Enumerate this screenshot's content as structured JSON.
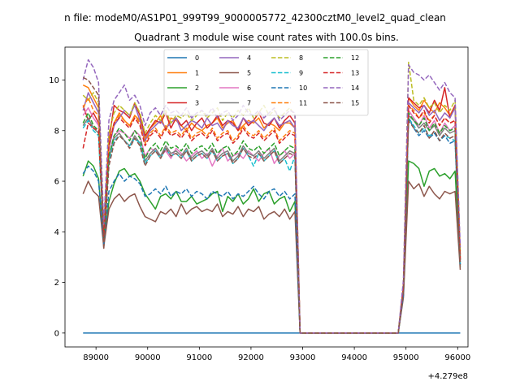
{
  "chart_data": {
    "type": "line",
    "suptitle": "n file: modeM0/AS1P01_999T99_9000005772_42300cztM0_level2_quad_clean",
    "title": "Quadrant 3 module wise count rates with 100.0s bins.",
    "xlabel": "",
    "ylabel": "",
    "x_offset_label": "+4.279e8",
    "xlim": [
      88400,
      96200
    ],
    "ylim": [
      -0.55,
      11.3
    ],
    "xticks": [
      89000,
      90000,
      91000,
      92000,
      93000,
      94000,
      95000,
      96000
    ],
    "xtick_labels": [
      "89000",
      "90000",
      "91000",
      "92000",
      "93000",
      "94000",
      "95000",
      "96000"
    ],
    "yticks": [
      0,
      2,
      4,
      6,
      8,
      10
    ],
    "ytick_labels": [
      "0",
      "2",
      "4",
      "6",
      "8",
      "10"
    ],
    "legend_location": "upper center",
    "legend_columns": 4,
    "x_start": 88750,
    "x_step": 100,
    "series": [
      {
        "name": "0",
        "color": "#1f77b4",
        "dashed": false,
        "values": [
          0,
          0,
          0,
          0,
          0,
          0,
          0,
          0,
          0,
          0,
          0,
          0,
          0,
          0,
          0,
          0,
          0,
          0,
          0,
          0,
          0,
          0,
          0,
          0,
          0,
          0,
          0,
          0,
          0,
          0,
          0,
          0,
          0,
          0,
          0,
          0,
          0,
          0,
          0,
          0,
          0,
          0,
          0,
          0,
          0,
          0,
          0,
          0,
          0,
          0,
          0,
          0,
          0,
          0,
          0,
          0,
          0,
          0,
          0,
          0,
          0,
          0,
          0,
          0,
          0,
          0,
          0,
          0,
          0,
          0,
          0,
          0,
          0,
          0
        ]
      },
      {
        "name": "1",
        "color": "#ff7f0e",
        "dashed": false,
        "values": [
          9.8,
          9.7,
          9.3,
          8.9,
          3.9,
          7.4,
          8.3,
          8.7,
          8.4,
          8.2,
          8.6,
          8.4,
          7.7,
          8.1,
          8.3,
          8.6,
          8.0,
          8.5,
          8.4,
          8.2,
          8.0,
          8.3,
          8.1,
          8.0,
          8.2,
          8.3,
          8.5,
          8.1,
          8.3,
          8.4,
          8.0,
          8.2,
          8.4,
          8.3,
          8.5,
          8.1,
          8.3,
          8.2,
          8.0,
          8.3,
          8.3,
          8.1,
          0,
          0,
          0,
          0,
          0,
          0,
          0,
          0,
          0,
          0,
          0,
          0,
          0,
          0,
          0,
          0,
          0,
          0,
          0,
          0,
          1.8,
          9.3,
          9.0,
          8.8,
          9.2,
          8.9,
          8.7,
          9.1,
          8.9,
          8.6,
          9.0,
          3.0
        ]
      },
      {
        "name": "2",
        "color": "#2ca02c",
        "dashed": false,
        "values": [
          6.2,
          6.8,
          6.6,
          6.1,
          3.5,
          5.2,
          5.9,
          6.4,
          6.5,
          6.2,
          6.3,
          6.0,
          5.5,
          5.2,
          4.9,
          5.4,
          5.5,
          5.3,
          5.6,
          5.2,
          5.2,
          5.4,
          5.1,
          5.2,
          5.3,
          5.5,
          5.6,
          4.8,
          5.4,
          5.2,
          5.5,
          5.1,
          5.3,
          5.7,
          5.2,
          5.5,
          5.6,
          5.1,
          5.3,
          5.4,
          4.8,
          5.2,
          0,
          0,
          0,
          0,
          0,
          0,
          0,
          0,
          0,
          0,
          0,
          0,
          0,
          0,
          0,
          0,
          0,
          0,
          0,
          0,
          1.5,
          6.8,
          6.7,
          6.5,
          5.8,
          6.4,
          6.5,
          6.2,
          6.3,
          6.1,
          6.4,
          2.6
        ]
      },
      {
        "name": "3",
        "color": "#d62728",
        "dashed": false,
        "values": [
          9.0,
          8.4,
          8.7,
          8.3,
          4.2,
          7.6,
          9.0,
          8.8,
          8.7,
          8.5,
          9.1,
          8.6,
          7.8,
          8.1,
          8.4,
          8.3,
          8.7,
          8.1,
          8.5,
          8.2,
          8.4,
          8.0,
          8.3,
          8.5,
          8.1,
          8.3,
          8.6,
          8.2,
          8.4,
          8.3,
          8.0,
          8.5,
          8.2,
          8.4,
          8.7,
          8.3,
          8.2,
          8.5,
          8.1,
          8.4,
          8.6,
          8.3,
          0,
          0,
          0,
          0,
          0,
          0,
          0,
          0,
          0,
          0,
          0,
          0,
          0,
          0,
          0,
          0,
          0,
          0,
          0,
          0,
          1.9,
          9.3,
          9.1,
          8.9,
          9.0,
          8.7,
          9.2,
          8.8,
          9.7,
          8.5,
          9.0,
          3.1
        ]
      },
      {
        "name": "4",
        "color": "#9467bd",
        "dashed": false,
        "values": [
          8.8,
          9.5,
          9.1,
          8.7,
          3.8,
          7.3,
          8.2,
          8.5,
          8.8,
          8.6,
          9.0,
          8.4,
          7.6,
          8.0,
          8.2,
          8.4,
          8.1,
          8.3,
          8.5,
          8.0,
          8.2,
          8.4,
          8.3,
          8.1,
          8.5,
          8.2,
          8.3,
          8.0,
          8.4,
          8.2,
          8.1,
          8.5,
          8.3,
          8.4,
          8.2,
          8.0,
          8.3,
          8.5,
          8.2,
          8.3,
          8.4,
          8.1,
          0,
          0,
          0,
          0,
          0,
          0,
          0,
          0,
          0,
          0,
          0,
          0,
          0,
          0,
          0,
          0,
          0,
          0,
          0,
          0,
          1.8,
          9.1,
          8.9,
          8.7,
          9.0,
          8.6,
          8.8,
          8.4,
          8.7,
          8.5,
          8.9,
          2.9
        ]
      },
      {
        "name": "5",
        "color": "#8c564b",
        "dashed": false,
        "values": [
          5.5,
          6.0,
          5.6,
          5.4,
          3.4,
          4.9,
          5.3,
          5.5,
          5.2,
          5.4,
          5.5,
          5.0,
          4.6,
          4.5,
          4.4,
          4.8,
          4.7,
          4.9,
          4.6,
          5.1,
          4.7,
          4.9,
          5.0,
          4.8,
          4.9,
          4.8,
          5.1,
          4.6,
          4.8,
          4.7,
          5.0,
          4.6,
          4.9,
          4.8,
          5.0,
          4.5,
          4.7,
          4.8,
          4.6,
          4.9,
          4.5,
          4.8,
          0,
          0,
          0,
          0,
          0,
          0,
          0,
          0,
          0,
          0,
          0,
          0,
          0,
          0,
          0,
          0,
          0,
          0,
          0,
          0,
          1.4,
          6.0,
          5.7,
          5.9,
          5.4,
          5.8,
          5.5,
          5.3,
          5.6,
          5.5,
          5.6,
          2.5
        ]
      },
      {
        "name": "6",
        "color": "#e377c2",
        "dashed": false,
        "values": [
          8.6,
          8.9,
          8.5,
          8.2,
          3.7,
          7.0,
          7.8,
          8.0,
          7.9,
          7.7,
          8.0,
          7.8,
          7.0,
          7.3,
          7.2,
          7.0,
          7.2,
          6.9,
          7.3,
          7.1,
          6.8,
          7.0,
          7.2,
          6.9,
          7.1,
          6.6,
          7.0,
          7.3,
          6.8,
          7.0,
          7.1,
          6.9,
          7.2,
          7.0,
          6.8,
          7.1,
          7.3,
          6.7,
          7.0,
          7.2,
          6.9,
          7.1,
          0,
          0,
          0,
          0,
          0,
          0,
          0,
          0,
          0,
          0,
          0,
          0,
          0,
          0,
          0,
          0,
          0,
          0,
          0,
          0,
          1.7,
          8.8,
          8.5,
          8.2,
          8.6,
          8.1,
          8.4,
          7.9,
          8.3,
          8.0,
          8.2,
          2.8
        ]
      },
      {
        "name": "7",
        "color": "#7f7f7f",
        "dashed": false,
        "values": [
          8.2,
          8.5,
          8.1,
          7.9,
          3.6,
          6.9,
          7.7,
          7.9,
          7.6,
          7.4,
          7.8,
          7.5,
          6.8,
          7.1,
          7.3,
          7.0,
          7.4,
          7.1,
          7.2,
          7.0,
          7.3,
          6.9,
          7.1,
          7.2,
          7.0,
          7.3,
          6.9,
          7.1,
          7.2,
          6.8,
          7.0,
          7.4,
          7.1,
          7.0,
          7.2,
          6.9,
          7.1,
          7.3,
          6.8,
          7.0,
          7.2,
          7.1,
          0,
          0,
          0,
          0,
          0,
          0,
          0,
          0,
          0,
          0,
          0,
          0,
          0,
          0,
          0,
          0,
          0,
          0,
          0,
          0,
          1.7,
          8.6,
          8.4,
          8.1,
          8.3,
          8.0,
          8.2,
          7.8,
          8.1,
          7.9,
          8.0,
          2.8
        ]
      },
      {
        "name": "8",
        "color": "#bcbd22",
        "dashed": true,
        "values": [
          9.4,
          9.2,
          9.5,
          9.1,
          4.1,
          7.9,
          8.7,
          9.0,
          8.8,
          8.6,
          9.1,
          8.7,
          7.9,
          8.3,
          8.6,
          8.4,
          8.8,
          8.3,
          8.6,
          8.5,
          8.7,
          8.4,
          8.6,
          8.8,
          8.5,
          8.7,
          8.9,
          8.4,
          8.7,
          8.5,
          8.8,
          8.6,
          8.9,
          8.5,
          8.7,
          9.0,
          8.6,
          8.8,
          8.5,
          8.7,
          8.9,
          8.6,
          0,
          0,
          0,
          0,
          0,
          0,
          0,
          0,
          0,
          0,
          0,
          0,
          0,
          0,
          0,
          0,
          0,
          0,
          0,
          0,
          2.0,
          10.7,
          9.2,
          9.0,
          9.3,
          8.9,
          9.1,
          8.7,
          9.0,
          8.8,
          9.2,
          3.2
        ]
      },
      {
        "name": "9",
        "color": "#17becf",
        "dashed": true,
        "values": [
          8.1,
          8.4,
          8.0,
          7.8,
          3.6,
          6.8,
          7.6,
          7.8,
          7.6,
          7.4,
          7.7,
          7.5,
          6.7,
          7.0,
          7.2,
          6.9,
          7.3,
          7.0,
          7.1,
          6.9,
          7.2,
          6.8,
          7.0,
          7.1,
          6.9,
          7.2,
          6.8,
          7.0,
          7.1,
          6.7,
          6.9,
          7.3,
          7.0,
          6.6,
          7.1,
          6.8,
          7.0,
          7.2,
          6.7,
          6.9,
          6.4,
          7.0,
          0,
          0,
          0,
          0,
          0,
          0,
          0,
          0,
          0,
          0,
          0,
          0,
          0,
          0,
          0,
          0,
          0,
          0,
          0,
          0,
          1.6,
          8.5,
          8.2,
          7.9,
          8.1,
          7.8,
          7.9,
          7.6,
          7.8,
          7.7,
          7.6,
          2.7
        ]
      },
      {
        "name": "10",
        "color": "#1f77b4",
        "dashed": true,
        "values": [
          6.3,
          6.6,
          6.4,
          6.0,
          3.5,
          5.6,
          6.0,
          6.3,
          6.0,
          6.2,
          6.1,
          5.9,
          5.4,
          5.5,
          5.7,
          5.5,
          5.8,
          5.4,
          5.6,
          5.5,
          5.7,
          5.4,
          5.6,
          5.5,
          5.3,
          5.6,
          5.5,
          5.4,
          5.6,
          5.3,
          5.5,
          5.4,
          5.6,
          5.8,
          5.5,
          5.3,
          5.6,
          5.7,
          5.4,
          5.6,
          5.3,
          5.5,
          0,
          0,
          0,
          0,
          0,
          0,
          0,
          0,
          0,
          0,
          0,
          0,
          0,
          0,
          0,
          0,
          0,
          0,
          0,
          0,
          1.5,
          8.5,
          8.1,
          7.8,
          8.0,
          7.7,
          7.9,
          7.6,
          7.8,
          7.5,
          7.6,
          2.7
        ]
      },
      {
        "name": "11",
        "color": "#ff7f0e",
        "dashed": true,
        "values": [
          8.9,
          9.3,
          8.8,
          8.6,
          3.9,
          7.5,
          8.3,
          8.6,
          8.4,
          8.2,
          8.6,
          8.3,
          7.5,
          7.9,
          8.1,
          7.8,
          8.2,
          7.9,
          8.0,
          7.8,
          8.1,
          7.7,
          7.9,
          8.0,
          7.8,
          8.1,
          7.7,
          7.9,
          8.0,
          7.6,
          7.8,
          8.2,
          7.9,
          7.8,
          8.0,
          7.7,
          7.9,
          8.1,
          7.6,
          7.8,
          8.0,
          7.9,
          0,
          0,
          0,
          0,
          0,
          0,
          0,
          0,
          0,
          0,
          0,
          0,
          0,
          0,
          0,
          0,
          0,
          0,
          0,
          0,
          1.8,
          9.0,
          8.8,
          8.5,
          8.7,
          8.4,
          8.6,
          8.2,
          8.5,
          8.3,
          8.4,
          2.9
        ]
      },
      {
        "name": "12",
        "color": "#2ca02c",
        "dashed": true,
        "values": [
          8.3,
          8.7,
          8.2,
          8.0,
          3.7,
          7.0,
          7.8,
          8.1,
          7.9,
          7.6,
          8.0,
          7.7,
          6.9,
          7.3,
          7.5,
          7.2,
          7.6,
          7.3,
          7.4,
          7.2,
          7.5,
          7.1,
          7.3,
          7.4,
          7.2,
          7.5,
          7.1,
          7.3,
          7.4,
          7.0,
          7.2,
          7.6,
          7.3,
          7.2,
          7.4,
          7.1,
          7.3,
          7.5,
          7.0,
          7.2,
          7.4,
          7.3,
          0,
          0,
          0,
          0,
          0,
          0,
          0,
          0,
          0,
          0,
          0,
          0,
          0,
          0,
          0,
          0,
          0,
          0,
          0,
          0,
          1.7,
          8.7,
          8.4,
          8.2,
          8.5,
          8.0,
          8.3,
          7.9,
          8.2,
          8.0,
          8.1,
          2.8
        ]
      },
      {
        "name": "13",
        "color": "#d62728",
        "dashed": true,
        "values": [
          7.3,
          8.3,
          8.1,
          8.0,
          3.8,
          7.4,
          8.3,
          8.5,
          8.3,
          8.1,
          8.5,
          8.2,
          7.4,
          7.8,
          8.0,
          7.7,
          8.1,
          7.8,
          7.9,
          7.7,
          8.0,
          7.6,
          7.8,
          7.9,
          7.7,
          8.0,
          7.6,
          7.8,
          7.9,
          7.5,
          7.7,
          8.1,
          7.8,
          7.7,
          7.9,
          7.6,
          7.8,
          8.0,
          7.5,
          7.7,
          7.9,
          7.8,
          0,
          0,
          0,
          0,
          0,
          0,
          0,
          0,
          0,
          0,
          0,
          0,
          0,
          0,
          0,
          0,
          0,
          0,
          0,
          0,
          1.8,
          9.0,
          8.7,
          8.5,
          8.8,
          8.3,
          8.6,
          8.2,
          8.5,
          8.3,
          8.4,
          2.9
        ]
      },
      {
        "name": "14",
        "color": "#9467bd",
        "dashed": true,
        "values": [
          10.0,
          10.8,
          10.5,
          9.9,
          4.3,
          8.4,
          9.2,
          9.5,
          9.8,
          9.2,
          9.4,
          9.0,
          8.2,
          8.7,
          8.9,
          8.6,
          9.0,
          8.7,
          8.8,
          8.6,
          8.9,
          8.5,
          8.7,
          8.8,
          8.6,
          8.9,
          8.5,
          8.7,
          8.8,
          8.4,
          8.6,
          9.0,
          8.7,
          8.6,
          8.8,
          8.5,
          8.7,
          8.9,
          8.4,
          8.6,
          8.8,
          8.7,
          0,
          0,
          0,
          0,
          0,
          0,
          0,
          0,
          0,
          0,
          0,
          0,
          0,
          0,
          0,
          0,
          0,
          0,
          0,
          0,
          2.1,
          10.6,
          10.3,
          10.2,
          10.0,
          10.2,
          9.9,
          9.6,
          9.9,
          9.5,
          9.3,
          3.4
        ]
      },
      {
        "name": "15",
        "color": "#8c564b",
        "dashed": true,
        "values": [
          10.1,
          10.0,
          9.7,
          9.4,
          3.3,
          6.6,
          7.5,
          7.8,
          7.6,
          7.3,
          7.7,
          7.4,
          6.6,
          7.0,
          7.2,
          6.9,
          7.3,
          7.0,
          7.1,
          6.9,
          7.2,
          6.8,
          7.0,
          7.1,
          6.9,
          7.2,
          6.8,
          7.0,
          7.1,
          6.7,
          6.9,
          7.3,
          7.0,
          6.9,
          7.1,
          6.8,
          7.0,
          7.2,
          6.7,
          6.9,
          7.1,
          7.0,
          0,
          0,
          0,
          0,
          0,
          0,
          0,
          0,
          0,
          0,
          0,
          0,
          0,
          0,
          0,
          0,
          0,
          0,
          0,
          0,
          1.6,
          8.4,
          8.1,
          7.9,
          8.2,
          7.7,
          8.0,
          7.6,
          7.9,
          7.7,
          7.8,
          2.7
        ]
      }
    ]
  }
}
